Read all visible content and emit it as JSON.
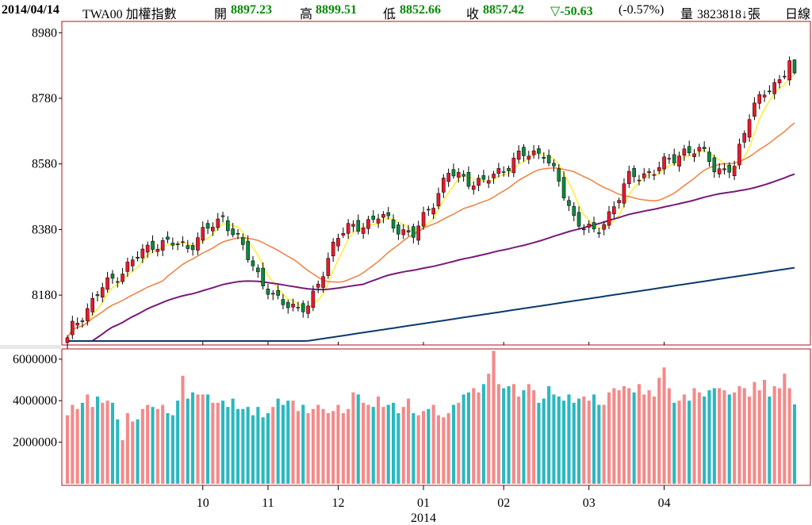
{
  "header": {
    "date": "2014/04/14",
    "symbol": "TWA00 加權指數",
    "open_label": "開",
    "open": "8897.23",
    "high_label": "高",
    "high": "8899.51",
    "low_label": "低",
    "low": "8852.66",
    "close_label": "收",
    "close": "8857.42",
    "change": "▽-50.63",
    "change_pct": "(-0.57%)",
    "volume_label": "量",
    "volume": "3823818↓張",
    "period": "日線"
  },
  "colors": {
    "up": "#e8192c",
    "down": "#0a8a3c",
    "ma5": "#ffee33",
    "ma20": "#f08040",
    "ma60": "#7a1a7a",
    "ma240": "#0b3a6e",
    "vol_up": "#f48a8a",
    "vol_down": "#2ab8c0",
    "frame": "#b0101c"
  },
  "chart_data": [
    {
      "type": "candlestick",
      "y_ticks": [
        "8980",
        "8780",
        "8580",
        "8380",
        "8180"
      ],
      "ylim": [
        8040,
        9000
      ],
      "grid": false,
      "price_start": 8050,
      "price_end": 8857.42,
      "last_open": 8897.23,
      "last_high": 8899.51,
      "last_low": 8852.66
    },
    {
      "type": "bar",
      "y_ticks": [
        "6000000",
        "4000000",
        "2000000"
      ],
      "ylim": [
        0,
        6300000
      ],
      "values": [
        3300000,
        3800000,
        3600000,
        3900000,
        4300000,
        3700000,
        4200000,
        3900000,
        4000000,
        3900000,
        3100000,
        2100000,
        3400000,
        3000000,
        3100000,
        3600000,
        3800000,
        3700000,
        3600000,
        3800000,
        3400000,
        3300000,
        4000000,
        5200000,
        4100000,
        4400000,
        4300000,
        4300000,
        4300000,
        3900000,
        3900000,
        4000000,
        3700000,
        4100000,
        3600000,
        3600000,
        3700000,
        3300000,
        3700000,
        3200000,
        3400000,
        3700000,
        4100000,
        3800000,
        4000000,
        4000000,
        3500000,
        3800000,
        3400000,
        3600000,
        3800000,
        3600000,
        3400000,
        3500000,
        3800000,
        3400000,
        3600000,
        4400000,
        4300000,
        3900000,
        3800000,
        3700000,
        4200000,
        3700000,
        3800000,
        3900000,
        3400000,
        3700000,
        4100000,
        3400000,
        3300000,
        3500000,
        3600000,
        3800000,
        3300000,
        3200000,
        3400000,
        3800000,
        3900000,
        4300000,
        4400000,
        4600000,
        4400000,
        4800000,
        5300000,
        6400000,
        4800000,
        4600000,
        4700000,
        4800000,
        4200000,
        4500000,
        4800000,
        4500000,
        3900000,
        4100000,
        4700000,
        4300000,
        4200000,
        4000000,
        4300000,
        3900000,
        4100000,
        4200000,
        4000000,
        4300000,
        3800000,
        3800000,
        4400000,
        4600000,
        4500000,
        4700000,
        4600000,
        4400000,
        4800000,
        4300000,
        4500000,
        4200000,
        5100000,
        5600000,
        4600000,
        3900000,
        4000000,
        4300000,
        4000000,
        4600000,
        4400000,
        4200000,
        4500000,
        4600000,
        4600000,
        4500000,
        4300000,
        4400000,
        4700000,
        4600000,
        4200000,
        4900000,
        4500000,
        5000000,
        4200000,
        4700000,
        4600000,
        5300000,
        4600000,
        3823818
      ]
    }
  ],
  "x_axis": {
    "month_labels": [
      "10",
      "11",
      "12",
      "01",
      "02",
      "03",
      "04"
    ],
    "year_label": "2014"
  }
}
